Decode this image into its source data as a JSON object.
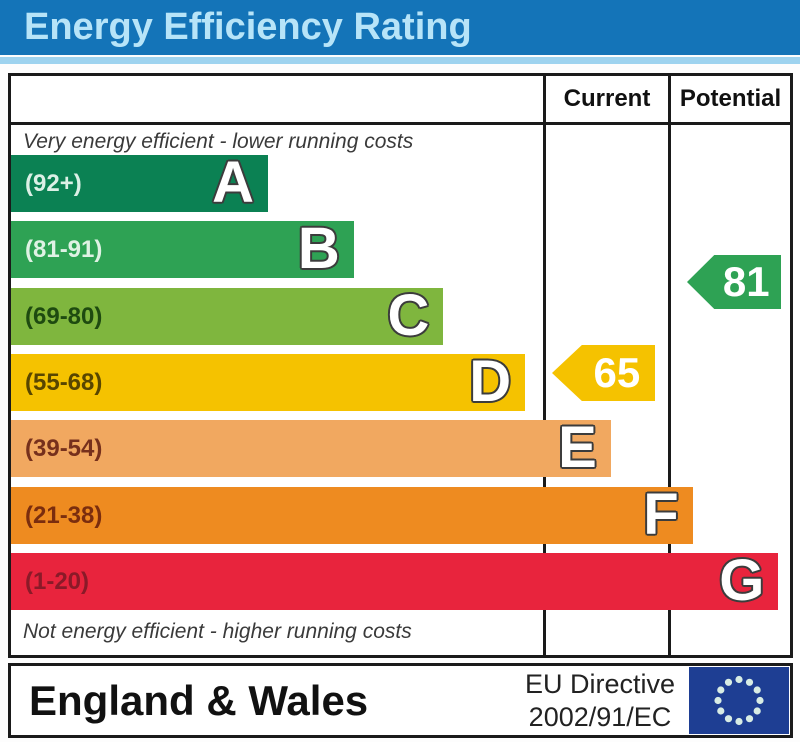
{
  "title_bar": {
    "title": "Energy Efficiency Rating",
    "bg": "#1474B8",
    "text_color": "#B7E4F8",
    "strip_color": "#9ED3EF"
  },
  "table": {
    "columns": {
      "current": "Current",
      "potential": "Potential"
    },
    "caption_top": "Very energy efficient - lower running costs",
    "caption_bottom": "Not energy efficient - higher running costs"
  },
  "chart_data": {
    "type": "bar",
    "title": "Energy Efficiency Rating",
    "description": "UK EPC energy efficiency rating chart, bands A (best, 92+) to G (worst, 1-20)",
    "bands": [
      {
        "letter": "A",
        "range": "(92+)",
        "min": 92,
        "max": 100,
        "color": "#0B8153",
        "label_color": "#DCF0E6",
        "width_pct": 33.0
      },
      {
        "letter": "B",
        "range": "(81-91)",
        "min": 81,
        "max": 91,
        "color": "#2EA254",
        "label_color": "#DFF2E4",
        "width_pct": 44.0
      },
      {
        "letter": "C",
        "range": "(69-80)",
        "min": 69,
        "max": 80,
        "color": "#7FB63E",
        "label_color": "#1E4A10",
        "width_pct": 55.5
      },
      {
        "letter": "D",
        "range": "(55-68)",
        "min": 55,
        "max": 68,
        "color": "#F5C200",
        "label_color": "#584600",
        "width_pct": 66.0
      },
      {
        "letter": "E",
        "range": "(39-54)",
        "min": 39,
        "max": 54,
        "color": "#F1A860",
        "label_color": "#76301C",
        "width_pct": 77.0
      },
      {
        "letter": "F",
        "range": "(21-38)",
        "min": 21,
        "max": 38,
        "color": "#EE8B20",
        "label_color": "#7A2D0E",
        "width_pct": 87.5
      },
      {
        "letter": "G",
        "range": "(1-20)",
        "min": 1,
        "max": 20,
        "color": "#E8243D",
        "label_color": "#8A1A28",
        "width_pct": 98.5
      }
    ],
    "current": {
      "value": "65",
      "band": "D",
      "color": "#F5C200"
    },
    "potential": {
      "value": "81",
      "band": "B",
      "color": "#2EA254"
    }
  },
  "footer": {
    "region": "England & Wales",
    "directive_line1": "EU Directive",
    "directive_line2": "2002/91/EC",
    "eu_flag": {
      "bg": "#1E3E93",
      "star_color": "#D8ECE4"
    }
  }
}
